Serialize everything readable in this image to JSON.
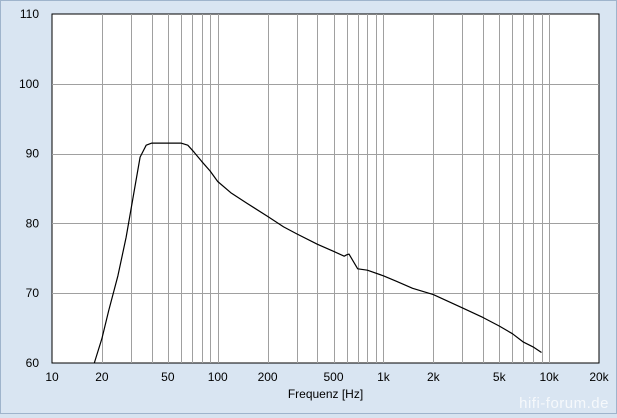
{
  "chart_data": {
    "type": "line",
    "title": "",
    "xlabel": "Frequenz [Hz]",
    "ylabel": "",
    "xscale": "log",
    "xlim": [
      10,
      20000
    ],
    "ylim": [
      60,
      110
    ],
    "grid": true,
    "legend": "none",
    "x_ticks": [
      {
        "value": 10,
        "label": "10"
      },
      {
        "value": 20,
        "label": "20"
      },
      {
        "value": 50,
        "label": "50"
      },
      {
        "value": 100,
        "label": "100"
      },
      {
        "value": 200,
        "label": "200"
      },
      {
        "value": 500,
        "label": "500"
      },
      {
        "value": 1000,
        "label": "1k"
      },
      {
        "value": 2000,
        "label": "2k"
      },
      {
        "value": 5000,
        "label": "5k"
      },
      {
        "value": 10000,
        "label": "10k"
      },
      {
        "value": 20000,
        "label": "20k"
      }
    ],
    "y_ticks": [
      {
        "value": 60,
        "label": "60"
      },
      {
        "value": 70,
        "label": "70"
      },
      {
        "value": 80,
        "label": "80"
      },
      {
        "value": 90,
        "label": "90"
      },
      {
        "value": 100,
        "label": "100"
      },
      {
        "value": 110,
        "label": "110"
      }
    ],
    "series": [
      {
        "color": "#000000",
        "x": [
          18,
          20,
          22,
          25,
          28,
          31,
          34,
          37,
          40,
          43,
          50,
          60,
          66,
          72,
          80,
          90,
          100,
          120,
          150,
          200,
          250,
          300,
          400,
          500,
          580,
          600,
          620,
          700,
          800,
          1000,
          1200,
          1500,
          2000,
          3000,
          4000,
          5000,
          6000,
          7000,
          8000,
          9000
        ],
        "y": [
          60,
          63.5,
          67.5,
          72.5,
          78,
          84,
          89.5,
          91.2,
          91.5,
          91.5,
          91.5,
          91.5,
          91.2,
          90.2,
          88.9,
          87.5,
          86,
          84.4,
          82.9,
          81,
          79.5,
          78.5,
          77,
          76,
          75.3,
          75.5,
          75.6,
          73.5,
          73.3,
          72.5,
          71.7,
          70.7,
          69.8,
          67.9,
          66.5,
          65.3,
          64.2,
          63.0,
          62.3,
          61.5
        ]
      }
    ]
  },
  "watermark": "hifi-forum.de"
}
